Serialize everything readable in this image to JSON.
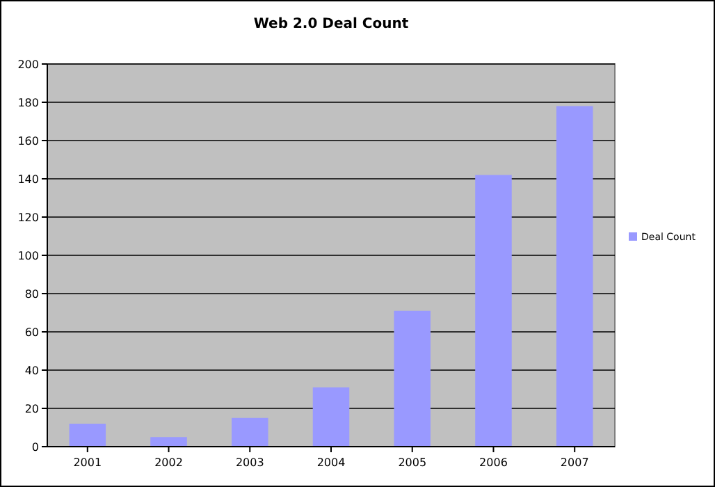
{
  "chart_data": {
    "type": "bar",
    "title": "Web 2.0 Deal Count",
    "categories": [
      "2001",
      "2002",
      "2003",
      "2004",
      "2005",
      "2006",
      "2007"
    ],
    "series": [
      {
        "name": "Deal Count",
        "color": "#9999ff",
        "values": [
          12,
          5,
          15,
          31,
          71,
          142,
          178
        ]
      }
    ],
    "ylim": [
      0,
      200
    ],
    "yticks": [
      0,
      20,
      40,
      60,
      80,
      100,
      120,
      140,
      160,
      180,
      200
    ],
    "grid": "y",
    "legend": "right"
  }
}
